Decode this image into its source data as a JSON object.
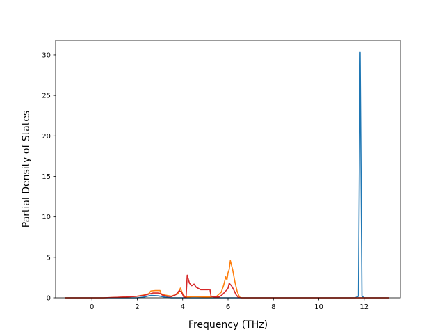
{
  "chart_data": {
    "type": "line",
    "title": "",
    "xlabel": "Frequency (THz)",
    "ylabel": "Partial Density of States",
    "xlim": [
      -1.6,
      13.6
    ],
    "ylim": [
      0,
      31.8
    ],
    "xticks": [
      0,
      2,
      4,
      6,
      8,
      10,
      12
    ],
    "yticks": [
      0,
      5,
      10,
      15,
      20,
      25,
      30
    ],
    "grid": false,
    "legend": "none",
    "series": [
      {
        "color": "#1f77b4",
        "points": [
          [
            -1.2,
            0
          ],
          [
            2.0,
            0
          ],
          [
            2.3,
            0.1
          ],
          [
            2.6,
            0.3
          ],
          [
            2.9,
            0.25
          ],
          [
            3.2,
            0.1
          ],
          [
            3.5,
            0
          ],
          [
            11.6,
            0
          ],
          [
            11.75,
            0.2
          ],
          [
            11.82,
            30.3
          ],
          [
            11.9,
            0.2
          ],
          [
            12.0,
            0
          ],
          [
            13.1,
            0
          ]
        ]
      },
      {
        "color": "#ff7f0e",
        "points": [
          [
            -1.2,
            0
          ],
          [
            0.5,
            0
          ],
          [
            1.0,
            0.05
          ],
          [
            1.5,
            0.1
          ],
          [
            2.0,
            0.2
          ],
          [
            2.3,
            0.35
          ],
          [
            2.5,
            0.5
          ],
          [
            2.6,
            0.85
          ],
          [
            2.8,
            0.9
          ],
          [
            3.0,
            0.9
          ],
          [
            3.05,
            0.5
          ],
          [
            3.2,
            0.35
          ],
          [
            3.5,
            0.2
          ],
          [
            3.8,
            0.5
          ],
          [
            3.9,
            1.2
          ],
          [
            4.0,
            0.5
          ],
          [
            4.1,
            0.15
          ],
          [
            4.2,
            0.1
          ],
          [
            4.5,
            0.15
          ],
          [
            5.0,
            0.1
          ],
          [
            5.2,
            0.1
          ],
          [
            5.5,
            0.2
          ],
          [
            5.7,
            0.7
          ],
          [
            5.8,
            1.5
          ],
          [
            5.9,
            2.6
          ],
          [
            5.95,
            2.2
          ],
          [
            6.0,
            3.1
          ],
          [
            6.05,
            3.5
          ],
          [
            6.1,
            4.6
          ],
          [
            6.2,
            3.5
          ],
          [
            6.3,
            2.0
          ],
          [
            6.4,
            0.8
          ],
          [
            6.5,
            0.1
          ],
          [
            6.6,
            0
          ],
          [
            13.1,
            0
          ]
        ]
      },
      {
        "color": "#d62728",
        "points": [
          [
            -1.2,
            0
          ],
          [
            0.5,
            0
          ],
          [
            1.0,
            0.05
          ],
          [
            1.5,
            0.1
          ],
          [
            2.0,
            0.2
          ],
          [
            2.3,
            0.3
          ],
          [
            2.5,
            0.45
          ],
          [
            2.7,
            0.6
          ],
          [
            2.9,
            0.6
          ],
          [
            3.0,
            0.55
          ],
          [
            3.1,
            0.35
          ],
          [
            3.3,
            0.2
          ],
          [
            3.5,
            0.15
          ],
          [
            3.7,
            0.4
          ],
          [
            3.85,
            0.9
          ],
          [
            3.95,
            0.7
          ],
          [
            4.05,
            0.1
          ],
          [
            4.15,
            0.05
          ],
          [
            4.2,
            2.8
          ],
          [
            4.3,
            1.8
          ],
          [
            4.4,
            1.5
          ],
          [
            4.5,
            1.7
          ],
          [
            4.6,
            1.3
          ],
          [
            4.8,
            1.0
          ],
          [
            5.0,
            1.0
          ],
          [
            5.1,
            1.0
          ],
          [
            5.2,
            1.05
          ],
          [
            5.25,
            0.2
          ],
          [
            5.4,
            0.1
          ],
          [
            5.6,
            0.1
          ],
          [
            5.75,
            0.4
          ],
          [
            5.85,
            0.7
          ],
          [
            5.95,
            1.0
          ],
          [
            6.0,
            1.2
          ],
          [
            6.05,
            1.8
          ],
          [
            6.15,
            1.5
          ],
          [
            6.25,
            1.0
          ],
          [
            6.35,
            0.4
          ],
          [
            6.45,
            0.05
          ],
          [
            6.6,
            0
          ],
          [
            13.1,
            0
          ]
        ]
      }
    ]
  }
}
